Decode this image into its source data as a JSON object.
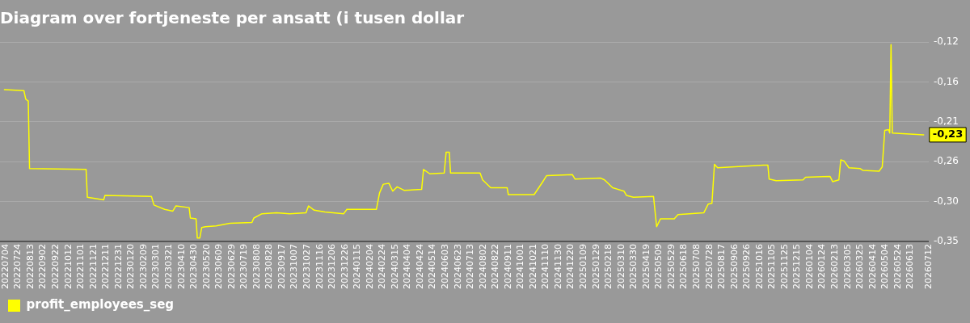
{
  "chart_data": {
    "type": "line",
    "title": "Diagram over fortjeneste per ansatt (i tusen dollar",
    "series": [
      {
        "name": "profit_employees_seg",
        "color": "#ffff00",
        "x": [
          "2022-07-02",
          "2022-08-02",
          "2022-08-05",
          "2022-08-09",
          "2022-08-11",
          "2022-11-09",
          "2022-11-11",
          "2022-12-07",
          "2022-12-09",
          "2023-02-21",
          "2023-02-25",
          "2023-03-14",
          "2023-03-27",
          "2023-04-01",
          "2023-04-22",
          "2023-04-24",
          "2023-05-03",
          "2023-05-05",
          "2023-05-09",
          "2023-05-12",
          "2023-05-18",
          "2023-06-04",
          "2023-06-26",
          "2023-07-31",
          "2023-08-03",
          "2023-08-16",
          "2023-09-08",
          "2023-09-29",
          "2023-10-25",
          "2023-10-29",
          "2023-11-07",
          "2023-11-24",
          "2023-12-24",
          "2023-12-29",
          "2024-02-14",
          "2024-02-19",
          "2024-02-25",
          "2024-03-05",
          "2024-03-11",
          "2024-03-18",
          "2024-03-29",
          "2024-04-26",
          "2024-04-29",
          "2024-05-09",
          "2024-06-01",
          "2024-06-04",
          "2024-06-09",
          "2024-06-11",
          "2024-07-28",
          "2024-08-01",
          "2024-08-14",
          "2024-09-09",
          "2024-09-11",
          "2024-10-22",
          "2024-11-04",
          "2024-11-11",
          "2024-12-22",
          "2024-12-26",
          "2025-02-05",
          "2025-02-11",
          "2025-02-24",
          "2025-03-14",
          "2025-03-18",
          "2025-03-29",
          "2025-04-30",
          "2025-05-03",
          "2025-05-05",
          "2025-05-11",
          "2025-06-02",
          "2025-06-08",
          "2025-07-19",
          "2025-07-26",
          "2025-08-01",
          "2025-08-05",
          "2025-08-10",
          "2025-10-22",
          "2025-10-29",
          "2025-10-31",
          "2025-11-11",
          "2025-12-24",
          "2025-12-28",
          "2026-02-05",
          "2026-02-09",
          "2026-02-19",
          "2026-02-22",
          "2026-02-27",
          "2026-03-07",
          "2026-03-25",
          "2026-03-29",
          "2026-04-24",
          "2026-04-29",
          "2026-05-03",
          "2026-05-09",
          "2026-05-11",
          "2026-05-13",
          "2026-05-15",
          "2026-07-04"
        ],
        "values": [
          -0.174,
          -0.175,
          -0.185,
          -0.187,
          -0.265,
          -0.266,
          -0.298,
          -0.301,
          -0.296,
          -0.297,
          -0.307,
          -0.312,
          -0.314,
          -0.308,
          -0.31,
          -0.322,
          -0.323,
          -0.345,
          -0.345,
          -0.333,
          -0.332,
          -0.331,
          -0.328,
          -0.327,
          -0.322,
          -0.317,
          -0.316,
          -0.317,
          -0.316,
          -0.308,
          -0.313,
          -0.315,
          -0.317,
          -0.312,
          -0.312,
          -0.293,
          -0.283,
          -0.282,
          -0.291,
          -0.286,
          -0.29,
          -0.289,
          -0.266,
          -0.271,
          -0.27,
          -0.246,
          -0.246,
          -0.27,
          -0.27,
          -0.278,
          -0.287,
          -0.287,
          -0.295,
          -0.295,
          -0.281,
          -0.273,
          -0.272,
          -0.277,
          -0.276,
          -0.278,
          -0.287,
          -0.291,
          -0.296,
          -0.298,
          -0.297,
          -0.318,
          -0.332,
          -0.323,
          -0.323,
          -0.318,
          -0.316,
          -0.306,
          -0.305,
          -0.26,
          -0.264,
          -0.261,
          -0.261,
          -0.277,
          -0.279,
          -0.278,
          -0.275,
          -0.274,
          -0.28,
          -0.278,
          -0.255,
          -0.256,
          -0.264,
          -0.265,
          -0.267,
          -0.268,
          -0.263,
          -0.221,
          -0.22,
          -0.224,
          -0.122,
          -0.224,
          -0.226
        ]
      }
    ],
    "xlim": [
      "2022-06-25",
      "2026-07-12"
    ],
    "xticks": [
      {
        "value": "2022-07-04",
        "label": "20220704"
      },
      {
        "value": "2022-07-24",
        "label": "20220724"
      },
      {
        "value": "2022-08-13",
        "label": "20220813"
      },
      {
        "value": "2022-09-02",
        "label": "20220902"
      },
      {
        "value": "2022-09-22",
        "label": "20220922"
      },
      {
        "value": "2022-10-12",
        "label": "20221012"
      },
      {
        "value": "2022-11-01",
        "label": "20221101"
      },
      {
        "value": "2022-11-21",
        "label": "20221121"
      },
      {
        "value": "2022-12-11",
        "label": "20221211"
      },
      {
        "value": "2022-12-31",
        "label": "20221231"
      },
      {
        "value": "2023-01-20",
        "label": "20230120"
      },
      {
        "value": "2023-02-09",
        "label": "20230209"
      },
      {
        "value": "2023-03-01",
        "label": "20230301"
      },
      {
        "value": "2023-03-21",
        "label": "20230321"
      },
      {
        "value": "2023-04-10",
        "label": "20230410"
      },
      {
        "value": "2023-04-30",
        "label": "20230430"
      },
      {
        "value": "2023-05-20",
        "label": "20230520"
      },
      {
        "value": "2023-06-09",
        "label": "20230609"
      },
      {
        "value": "2023-06-29",
        "label": "20230629"
      },
      {
        "value": "2023-07-19",
        "label": "20230719"
      },
      {
        "value": "2023-08-08",
        "label": "20230808"
      },
      {
        "value": "2023-08-28",
        "label": "20230828"
      },
      {
        "value": "2023-09-17",
        "label": "20230917"
      },
      {
        "value": "2023-10-07",
        "label": "20231007"
      },
      {
        "value": "2023-10-27",
        "label": "20231027"
      },
      {
        "value": "2023-11-16",
        "label": "20231116"
      },
      {
        "value": "2023-12-06",
        "label": "20231206"
      },
      {
        "value": "2023-12-26",
        "label": "20231226"
      },
      {
        "value": "2024-01-15",
        "label": "20240115"
      },
      {
        "value": "2024-02-04",
        "label": "20240204"
      },
      {
        "value": "2024-02-24",
        "label": "20240224"
      },
      {
        "value": "2024-03-15",
        "label": "20240315"
      },
      {
        "value": "2024-04-04",
        "label": "20240404"
      },
      {
        "value": "2024-04-24",
        "label": "20240424"
      },
      {
        "value": "2024-05-14",
        "label": "20240514"
      },
      {
        "value": "2024-06-03",
        "label": "20240603"
      },
      {
        "value": "2024-06-23",
        "label": "20240623"
      },
      {
        "value": "2024-07-13",
        "label": "20240713"
      },
      {
        "value": "2024-08-02",
        "label": "20240802"
      },
      {
        "value": "2024-08-22",
        "label": "20240822"
      },
      {
        "value": "2024-09-11",
        "label": "20240911"
      },
      {
        "value": "2024-10-01",
        "label": "20241001"
      },
      {
        "value": "2024-10-21",
        "label": "20241021"
      },
      {
        "value": "2024-11-10",
        "label": "20241110"
      },
      {
        "value": "2024-11-30",
        "label": "20241130"
      },
      {
        "value": "2024-12-20",
        "label": "20241220"
      },
      {
        "value": "2025-01-09",
        "label": "20250109"
      },
      {
        "value": "2025-01-29",
        "label": "20250129"
      },
      {
        "value": "2025-02-18",
        "label": "20250218"
      },
      {
        "value": "2025-03-10",
        "label": "20250310"
      },
      {
        "value": "2025-03-30",
        "label": "20250330"
      },
      {
        "value": "2025-04-19",
        "label": "20250419"
      },
      {
        "value": "2025-05-09",
        "label": "20250509"
      },
      {
        "value": "2025-05-29",
        "label": "20250529"
      },
      {
        "value": "2025-06-18",
        "label": "20250618"
      },
      {
        "value": "2025-07-08",
        "label": "20250708"
      },
      {
        "value": "2025-07-28",
        "label": "20250728"
      },
      {
        "value": "2025-08-17",
        "label": "20250817"
      },
      {
        "value": "2025-09-06",
        "label": "20250906"
      },
      {
        "value": "2025-09-26",
        "label": "20250926"
      },
      {
        "value": "2025-10-16",
        "label": "20251016"
      },
      {
        "value": "2025-11-05",
        "label": "20251105"
      },
      {
        "value": "2025-11-25",
        "label": "20251125"
      },
      {
        "value": "2025-12-15",
        "label": "20251215"
      },
      {
        "value": "2026-01-04",
        "label": "20260104"
      },
      {
        "value": "2026-01-24",
        "label": "20260124"
      },
      {
        "value": "2026-02-13",
        "label": "20260213"
      },
      {
        "value": "2026-03-05",
        "label": "20260305"
      },
      {
        "value": "2026-03-25",
        "label": "20260325"
      },
      {
        "value": "2026-04-14",
        "label": "20260414"
      },
      {
        "value": "2026-05-04",
        "label": "20260504"
      },
      {
        "value": "2026-05-24",
        "label": "20260524"
      },
      {
        "value": "2026-06-13",
        "label": "20260613"
      },
      {
        "value": "2026-07-12",
        "label": "20260712"
      }
    ],
    "ylim": [
      -0.349,
      -0.119
    ],
    "yticks": [
      {
        "value": -0.349,
        "label": "-0,35"
      },
      {
        "value": -0.303,
        "label": "-0,30"
      },
      {
        "value": -0.257,
        "label": "-0,26"
      },
      {
        "value": -0.211,
        "label": "-0,21"
      },
      {
        "value": -0.165,
        "label": "-0,16"
      },
      {
        "value": -0.119,
        "label": "-0,12"
      }
    ],
    "annotations": [
      {
        "text": "-0,23",
        "x": "2026-07-04",
        "y": -0.226
      }
    ],
    "grid": "y",
    "legend": "bottom left",
    "marker": "none",
    "line_style": "solid"
  }
}
